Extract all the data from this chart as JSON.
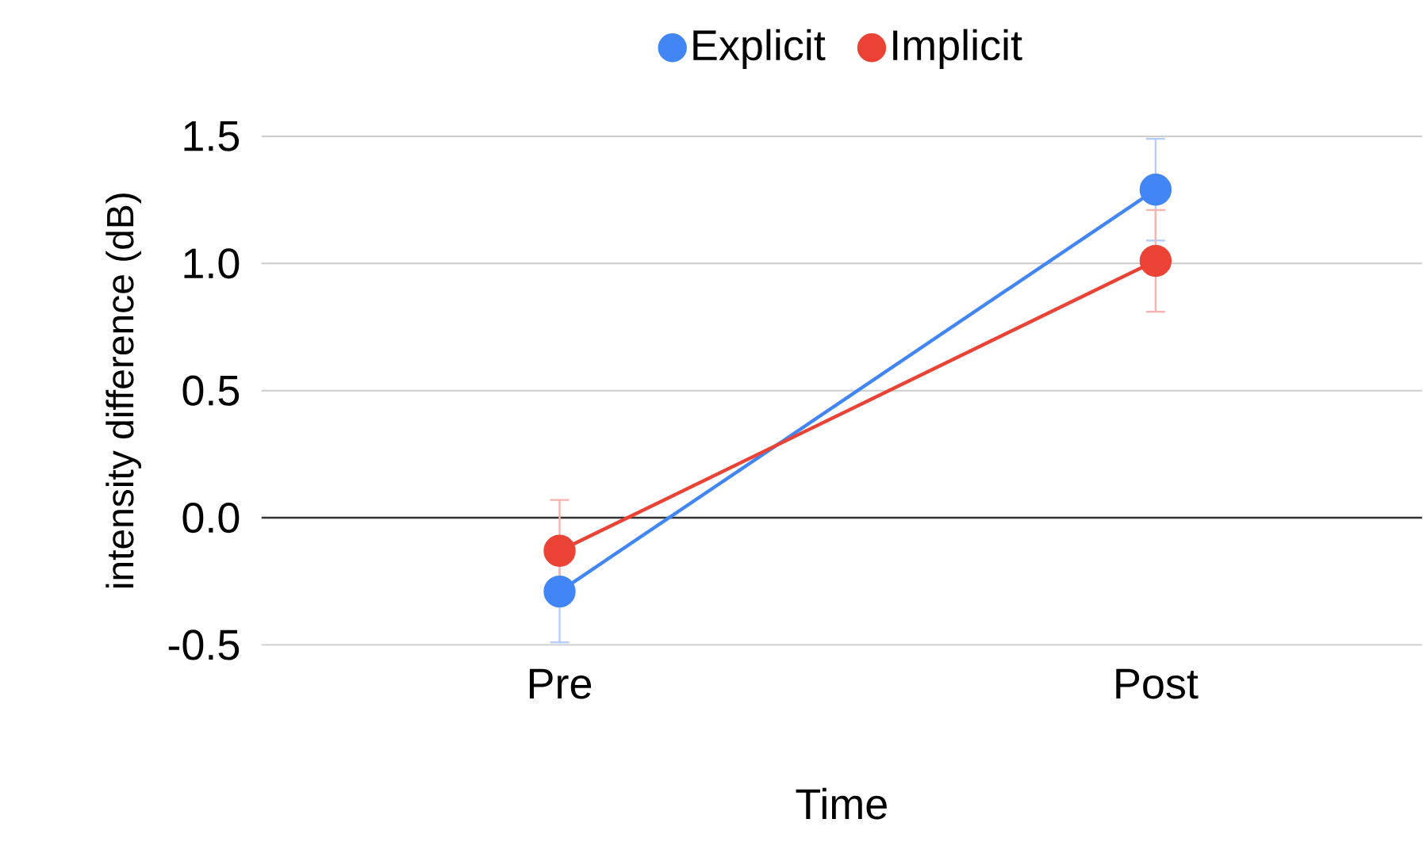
{
  "chart_data": {
    "type": "line",
    "xlabel": "Time",
    "ylabel": "intensity difference (dB)",
    "categories": [
      "Pre",
      "Post"
    ],
    "series": [
      {
        "name": "Explicit",
        "color": "#4285f4",
        "values": [
          -0.29,
          1.29
        ],
        "errors": [
          0.2,
          0.2
        ]
      },
      {
        "name": "Implicit",
        "color": "#ea4335",
        "values": [
          -0.13,
          1.01
        ],
        "errors": [
          0.2,
          0.2
        ]
      }
    ],
    "ylim": [
      -0.5,
      1.5
    ],
    "yticks": [
      -0.5,
      {
        "value": 0,
        "label": "0.0"
      },
      0.5,
      {
        "value": 1,
        "label": "1.0"
      },
      1.5
    ],
    "ref_lines": [
      {
        "axis": "y",
        "value": 0,
        "color": "#333333"
      }
    ],
    "grid": "y",
    "legend": "top",
    "marker": "circle",
    "line_style": "solid"
  }
}
